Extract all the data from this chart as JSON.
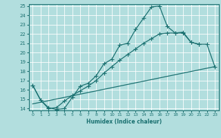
{
  "xlabel": "Humidex (Indice chaleur)",
  "background_color": "#b2dede",
  "grid_color": "#ffffff",
  "line_color": "#1a7070",
  "xlim": [
    -0.5,
    23.5
  ],
  "ylim": [
    13.8,
    25.2
  ],
  "xticks": [
    0,
    1,
    2,
    3,
    4,
    5,
    6,
    7,
    8,
    9,
    10,
    11,
    12,
    13,
    14,
    15,
    16,
    17,
    18,
    19,
    20,
    21,
    22,
    23
  ],
  "yticks": [
    14,
    15,
    16,
    17,
    18,
    19,
    20,
    21,
    22,
    23,
    24,
    25
  ],
  "series1_x": [
    0,
    1,
    2,
    3,
    4,
    5,
    6,
    7,
    8,
    9,
    10,
    11,
    12,
    13,
    14,
    15,
    16,
    17,
    18,
    19,
    20,
    21
  ],
  "series1_y": [
    16.5,
    14.9,
    14.1,
    13.9,
    14.0,
    15.2,
    16.4,
    16.7,
    17.5,
    18.8,
    19.3,
    20.8,
    21.0,
    22.5,
    23.7,
    24.9,
    25.0,
    22.8,
    22.1,
    22.2,
    21.1,
    20.9
  ],
  "series2_x": [
    0,
    1,
    2,
    3,
    4,
    5,
    6,
    7,
    8,
    9,
    10,
    11,
    12,
    13,
    14,
    15,
    16,
    17,
    18,
    19,
    20,
    21,
    22,
    23
  ],
  "series2_y": [
    16.5,
    14.9,
    14.0,
    14.1,
    14.8,
    15.4,
    15.9,
    16.4,
    17.0,
    17.8,
    18.5,
    19.2,
    19.8,
    20.4,
    21.0,
    21.5,
    22.0,
    22.1,
    22.1,
    22.1,
    21.1,
    20.9,
    20.9,
    18.5
  ],
  "series3_x": [
    0,
    23
  ],
  "series3_y": [
    14.5,
    18.5
  ],
  "marker": "+",
  "marker_size": 4,
  "linewidth": 0.9
}
